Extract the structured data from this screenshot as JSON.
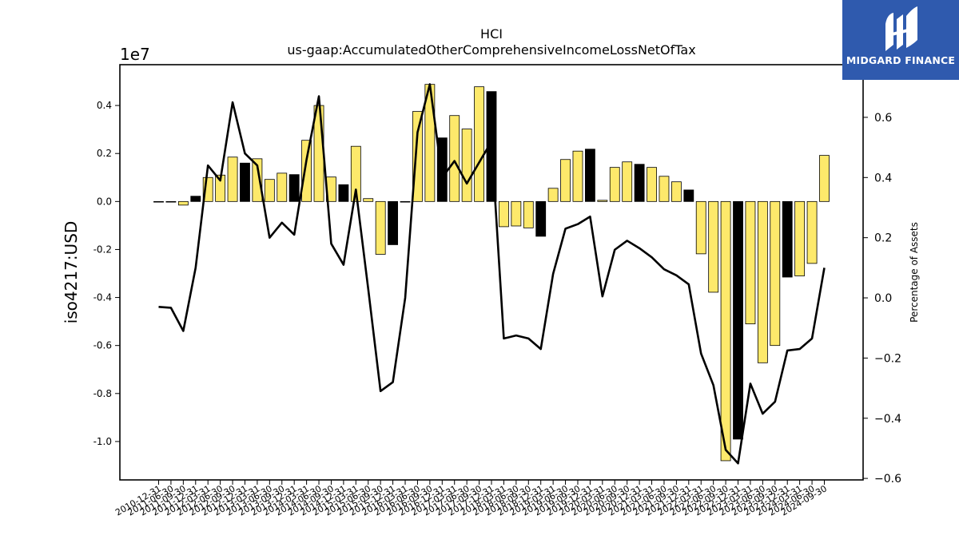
{
  "chart_data": {
    "type": "bar",
    "title": "HCI",
    "subtitle": "us-gaap:AccumulatedOtherComprehensiveIncomeLossNetOfTax",
    "ylabel": "iso4217:USD",
    "y2label": "Percentage of Assets",
    "y_multiplier_label": "1e7",
    "ylim": [
      -11.6,
      5.7
    ],
    "y2lim": [
      -0.605,
      0.775
    ],
    "yticks": [
      -1.0,
      -0.8,
      -0.6,
      -0.4,
      -0.2,
      0.0,
      0.2,
      0.4
    ],
    "y2ticks": [
      -0.6,
      -0.4,
      -0.2,
      0.0,
      0.2,
      0.4,
      0.6
    ],
    "grid": false,
    "legend": "none",
    "colors": {
      "bar_default": "#fde96b",
      "bar_highlight": "#000000",
      "line": "#000000"
    },
    "categories": [
      "2010-12-31",
      "2011-06-30",
      "2011-09-30",
      "2011-12-31",
      "2012-03-31",
      "2012-06-30",
      "2012-09-30",
      "2012-12-31",
      "2013-03-31",
      "2013-06-30",
      "2013-09-30",
      "2013-12-31",
      "2014-03-31",
      "2014-06-30",
      "2014-09-30",
      "2014-12-31",
      "2015-03-31",
      "2015-06-30",
      "2015-09-30",
      "2015-12-31",
      "2016-03-31",
      "2016-06-30",
      "2016-09-30",
      "2016-12-31",
      "2017-03-31",
      "2017-06-30",
      "2017-09-30",
      "2017-12-31",
      "2018-03-31",
      "2018-06-30",
      "2018-09-30",
      "2018-12-31",
      "2019-03-31",
      "2019-06-30",
      "2019-09-30",
      "2019-12-31",
      "2020-03-31",
      "2020-06-30",
      "2020-09-30",
      "2020-12-31",
      "2021-03-31",
      "2021-06-30",
      "2021-09-30",
      "2021-12-31",
      "2022-03-31",
      "2022-06-30",
      "2022-09-30",
      "2022-12-31",
      "2023-03-31",
      "2023-06-30",
      "2023-09-30",
      "2023-12-31",
      "2024-03-31",
      "2024-06-30",
      "2024-09-30"
    ],
    "series": [
      {
        "type": "bar",
        "axis": "left",
        "values": [
          -0.02,
          -0.02,
          -0.15,
          0.22,
          1.0,
          1.1,
          1.85,
          1.6,
          1.78,
          0.92,
          1.18,
          1.12,
          2.55,
          4.0,
          1.02,
          0.7,
          2.3,
          0.12,
          -2.2,
          -1.8,
          0.0,
          3.75,
          4.88,
          2.65,
          3.58,
          3.02,
          4.78,
          4.58,
          -1.05,
          -1.02,
          -1.1,
          -1.45,
          0.55,
          1.75,
          2.1,
          2.18,
          0.05,
          1.42,
          1.65,
          1.55,
          1.42,
          1.05,
          0.82,
          0.48,
          -2.18,
          -3.78,
          -10.8,
          -9.9,
          -5.1,
          -6.72,
          -6.0,
          -3.15,
          -3.1,
          -2.58,
          1.92
        ],
        "highlight": [
          false,
          true,
          false,
          true,
          false,
          false,
          false,
          true,
          false,
          false,
          false,
          true,
          false,
          false,
          false,
          true,
          false,
          false,
          false,
          true,
          false,
          false,
          false,
          true,
          false,
          false,
          false,
          true,
          false,
          false,
          false,
          true,
          false,
          false,
          false,
          true,
          false,
          false,
          false,
          true,
          false,
          false,
          false,
          true,
          false,
          false,
          false,
          true,
          false,
          false,
          false,
          true,
          false,
          false,
          false
        ]
      },
      {
        "type": "line",
        "axis": "right",
        "values": [
          -0.03,
          -0.033,
          -0.11,
          0.1,
          0.44,
          0.39,
          0.65,
          0.48,
          0.44,
          0.2,
          0.25,
          0.21,
          0.46,
          0.67,
          0.18,
          0.11,
          0.36,
          0.03,
          -0.31,
          -0.28,
          0.0,
          0.55,
          0.71,
          0.4,
          0.455,
          0.38,
          0.45,
          0.52,
          -0.135,
          -0.125,
          -0.135,
          -0.17,
          0.08,
          0.23,
          0.245,
          0.27,
          0.005,
          0.16,
          0.19,
          0.165,
          0.135,
          0.095,
          0.075,
          0.045,
          -0.185,
          -0.29,
          -0.505,
          -0.55,
          -0.285,
          -0.385,
          -0.345,
          -0.175,
          -0.17,
          -0.135,
          0.1
        ]
      }
    ]
  },
  "logo": {
    "text": "MIDGARD FINANCE"
  }
}
